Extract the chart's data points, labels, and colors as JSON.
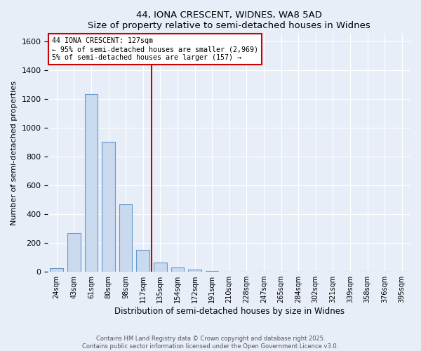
{
  "title": "44, IONA CRESCENT, WIDNES, WA8 5AD",
  "subtitle": "Size of property relative to semi-detached houses in Widnes",
  "xlabel": "Distribution of semi-detached houses by size in Widnes",
  "ylabel": "Number of semi-detached properties",
  "bin_labels": [
    "24sqm",
    "43sqm",
    "61sqm",
    "80sqm",
    "98sqm",
    "117sqm",
    "135sqm",
    "154sqm",
    "172sqm",
    "191sqm",
    "210sqm",
    "228sqm",
    "247sqm",
    "265sqm",
    "284sqm",
    "302sqm",
    "321sqm",
    "339sqm",
    "358sqm",
    "376sqm",
    "395sqm"
  ],
  "bar_heights": [
    27,
    267,
    1232,
    900,
    470,
    152,
    65,
    28,
    18,
    8,
    0,
    0,
    0,
    0,
    0,
    0,
    0,
    0,
    0,
    0,
    0
  ],
  "bar_color": "#c9d9ee",
  "bar_edge_color": "#6699cc",
  "vline_x_idx": 6,
  "vline_color": "#cc0000",
  "annotation_text": "44 IONA CRESCENT: 127sqm\n← 95% of semi-detached houses are smaller (2,969)\n5% of semi-detached houses are larger (157) →",
  "annotation_box_color": "white",
  "annotation_box_edge_color": "#cc0000",
  "ylim": [
    0,
    1650
  ],
  "yticks": [
    0,
    200,
    400,
    600,
    800,
    1000,
    1200,
    1400,
    1600
  ],
  "footer_line1": "Contains HM Land Registry data © Crown copyright and database right 2025.",
  "footer_line2": "Contains public sector information licensed under the Open Government Licence v3.0.",
  "background_color": "#e8eef8",
  "plot_bg_color": "#e8eef8",
  "grid_color": "white",
  "bar_width": 0.75
}
